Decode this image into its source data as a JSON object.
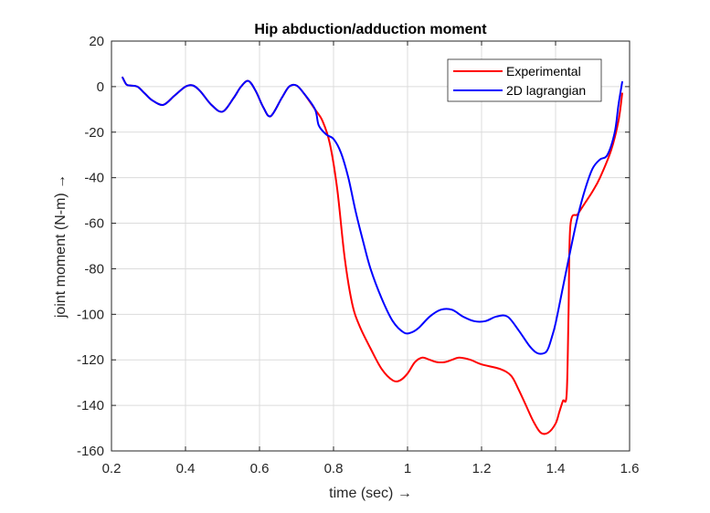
{
  "chart_data": {
    "type": "line",
    "title": "Hip abduction/adduction moment",
    "xlabel": "time (sec) →",
    "ylabel": "joint moment (N-m) →",
    "xlim": [
      0.2,
      1.6
    ],
    "ylim": [
      -160,
      20
    ],
    "xticks": [
      0.2,
      0.4,
      0.6,
      0.8,
      1,
      1.2,
      1.4,
      1.6
    ],
    "yticks": [
      20,
      0,
      -20,
      -40,
      -60,
      -80,
      -100,
      -120,
      -140,
      -160
    ],
    "xtick_labels": [
      "0.2",
      "0.4",
      "0.6",
      "0.8",
      "1",
      "1.2",
      "1.4",
      "1.6"
    ],
    "ytick_labels": [
      "20",
      "0",
      "-20",
      "-40",
      "-60",
      "-80",
      "-100",
      "-120",
      "-140",
      "-160"
    ],
    "grid": true,
    "legend_position": "top-right",
    "series": [
      {
        "name": "Experimental",
        "color": "#ff0000",
        "x": [
          0.23,
          0.24,
          0.25,
          0.27,
          0.29,
          0.31,
          0.34,
          0.37,
          0.4,
          0.42,
          0.44,
          0.47,
          0.5,
          0.53,
          0.55,
          0.57,
          0.59,
          0.61,
          0.63,
          0.66,
          0.68,
          0.7,
          0.72,
          0.75,
          0.77,
          0.79,
          0.81,
          0.83,
          0.85,
          0.87,
          0.9,
          0.93,
          0.96,
          0.98,
          1.0,
          1.02,
          1.04,
          1.06,
          1.08,
          1.1,
          1.12,
          1.14,
          1.17,
          1.2,
          1.25,
          1.28,
          1.3,
          1.32,
          1.34,
          1.36,
          1.38,
          1.4,
          1.41,
          1.42,
          1.43,
          1.435,
          1.44,
          1.46,
          1.48,
          1.5,
          1.52,
          1.55,
          1.57,
          1.58
        ],
        "y": [
          4,
          1,
          0.5,
          0,
          -3,
          -6,
          -8,
          -4,
          0,
          0.5,
          -2,
          -8,
          -11,
          -5,
          0,
          2.5,
          -2,
          -9,
          -13,
          -5,
          0,
          0.5,
          -3,
          -10,
          -15,
          -25,
          -45,
          -75,
          -95,
          -105,
          -115,
          -124,
          -129,
          -129,
          -126,
          -121,
          -119,
          -120,
          -121,
          -121,
          -120,
          -119,
          -120,
          -122,
          -124,
          -127,
          -133,
          -140,
          -147,
          -152,
          -152,
          -148,
          -143,
          -138,
          -135,
          -100,
          -61,
          -56,
          -51,
          -46,
          -40,
          -28,
          -15,
          -3
        ]
      },
      {
        "name": "2D lagrangian",
        "color": "#0000ff",
        "x": [
          0.23,
          0.24,
          0.25,
          0.27,
          0.29,
          0.31,
          0.34,
          0.37,
          0.4,
          0.42,
          0.44,
          0.47,
          0.5,
          0.53,
          0.55,
          0.57,
          0.59,
          0.61,
          0.63,
          0.66,
          0.68,
          0.7,
          0.72,
          0.75,
          0.76,
          0.78,
          0.8,
          0.82,
          0.84,
          0.86,
          0.88,
          0.9,
          0.93,
          0.96,
          0.99,
          1.01,
          1.03,
          1.06,
          1.09,
          1.12,
          1.15,
          1.18,
          1.21,
          1.24,
          1.27,
          1.3,
          1.33,
          1.35,
          1.37,
          1.38,
          1.39,
          1.4,
          1.42,
          1.44,
          1.46,
          1.48,
          1.5,
          1.52,
          1.54,
          1.56,
          1.57,
          1.58
        ],
        "y": [
          4,
          1,
          0.5,
          0,
          -3,
          -6,
          -8,
          -4,
          0,
          0.5,
          -2,
          -8,
          -11,
          -5,
          0,
          2.5,
          -2,
          -9,
          -13,
          -5,
          0,
          0.5,
          -3,
          -10,
          -17,
          -21,
          -23,
          -29,
          -40,
          -55,
          -68,
          -80,
          -93,
          -103,
          -108,
          -108,
          -106,
          -101,
          -98,
          -98,
          -101,
          -103,
          -103,
          -101,
          -101,
          -107,
          -114,
          -117,
          -117,
          -115,
          -110,
          -104,
          -88,
          -72,
          -57,
          -45,
          -36,
          -32,
          -30,
          -20,
          -8,
          2
        ]
      }
    ]
  }
}
